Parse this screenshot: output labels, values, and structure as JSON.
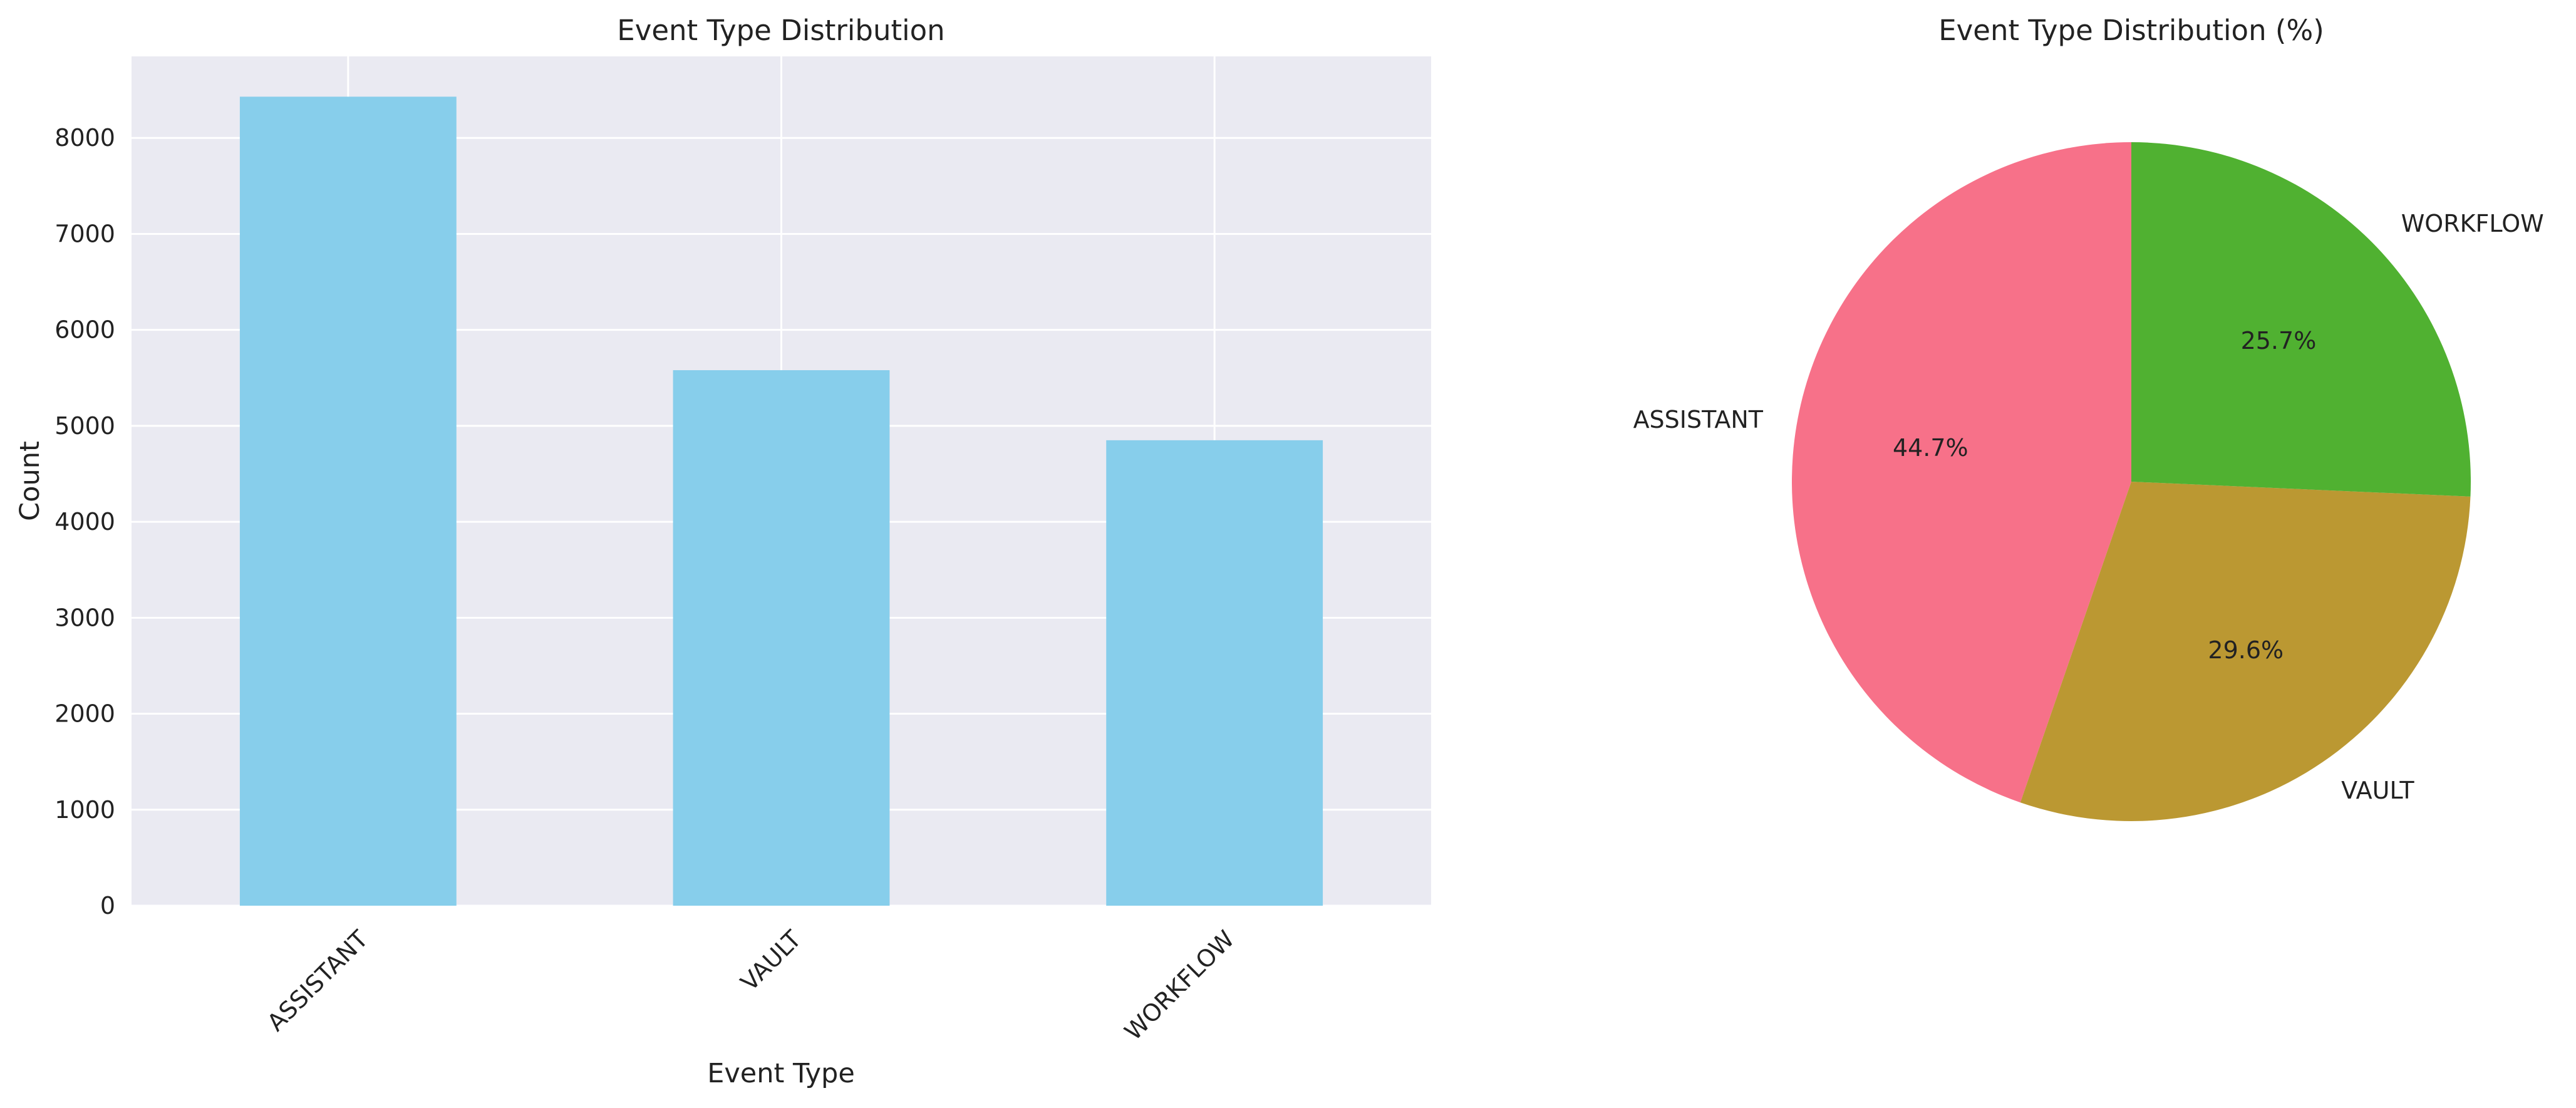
{
  "chart_data": [
    {
      "type": "bar",
      "title": "Event Type Distribution",
      "xlabel": "Event Type",
      "ylabel": "Count",
      "categories": [
        "ASSISTANT",
        "VAULT",
        "WORKFLOW"
      ],
      "values": [
        8430,
        5580,
        4850
      ],
      "ylim": [
        0,
        8850
      ],
      "yticks": [
        0,
        1000,
        2000,
        3000,
        4000,
        5000,
        6000,
        7000,
        8000
      ],
      "grid": true,
      "bar_color": "#87CEEB",
      "background_color": "#EAEAF2"
    },
    {
      "type": "pie",
      "title": "Event Type Distribution (%)",
      "labels": [
        "ASSISTANT",
        "VAULT",
        "WORKFLOW"
      ],
      "values": [
        44.7,
        29.6,
        25.7
      ],
      "percent_labels": [
        "44.7%",
        "29.6%",
        "25.7%"
      ],
      "colors": [
        "#F77189",
        "#BB9832",
        "#50B131"
      ]
    }
  ]
}
